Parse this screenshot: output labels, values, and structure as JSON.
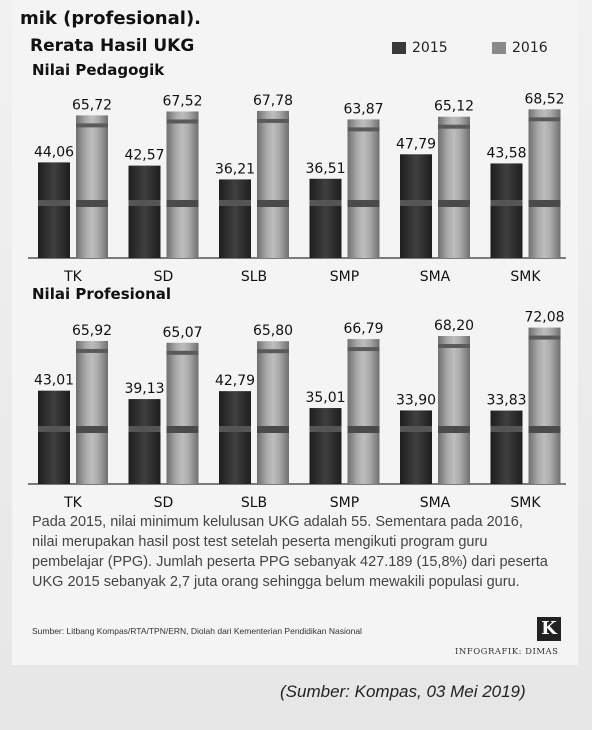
{
  "page": {
    "top_text": "mik (profesional).",
    "main_title": "Rerata Hasil UKG",
    "paragraph": "Pada 2015, nilai minimum kelulusan UKG adalah 55. Sementara pada 2016, nilai merupakan hasil post test setelah peserta mengikuti program guru pembelajar (PPG). Jumlah peserta PPG sebanyak 427.189 (15,8%) dari peserta UKG 2015 sebanyak 2,7 juta orang sehingga belum mewakili populasi guru.",
    "source": "Sumber: Litbang Kompas/RTA/TPN/ERN, Diolah dari Kementerian Pendidikan Nasional",
    "logo_letter": "K",
    "infografik": "INFOGRAFIK: DIMAS",
    "caption": "(Sumber: Kompas, 03 Mei 2019)"
  },
  "legend": [
    {
      "label": "2015",
      "color": "#3a3a3a"
    },
    {
      "label": "2016",
      "color": "#8a8a8a"
    }
  ],
  "chart_data": [
    {
      "type": "bar",
      "title": "Nilai Pedagogik",
      "categories": [
        "TK",
        "SD",
        "SLB",
        "SMP",
        "SMA",
        "SMK"
      ],
      "series": [
        {
          "name": "2015",
          "values": [
            44.06,
            42.57,
            36.21,
            36.51,
            47.79,
            43.58
          ]
        },
        {
          "name": "2016",
          "values": [
            65.72,
            67.52,
            67.78,
            63.87,
            65.12,
            68.52
          ]
        }
      ],
      "labels_2015": [
        "44,06",
        "42,57",
        "36,21",
        "36,51",
        "47,79",
        "43,58"
      ],
      "labels_2016": [
        "65,72",
        "67,52",
        "67,78",
        "63,87",
        "65,12",
        "68,52"
      ],
      "ylim": [
        0,
        75
      ]
    },
    {
      "type": "bar",
      "title": "Nilai Profesional",
      "categories": [
        "TK",
        "SD",
        "SLB",
        "SMP",
        "SMA",
        "SMK"
      ],
      "series": [
        {
          "name": "2015",
          "values": [
            43.01,
            39.13,
            42.79,
            35.01,
            33.9,
            33.83
          ]
        },
        {
          "name": "2016",
          "values": [
            65.92,
            65.07,
            65.8,
            66.79,
            68.2,
            72.08
          ]
        }
      ],
      "labels_2015": [
        "43,01",
        "39,13",
        "42,79",
        "35,01",
        "33,90",
        "33,83"
      ],
      "labels_2016": [
        "65,92",
        "65,07",
        "65,80",
        "66,79",
        "68,20",
        "72,08"
      ],
      "ylim": [
        0,
        75
      ]
    }
  ]
}
